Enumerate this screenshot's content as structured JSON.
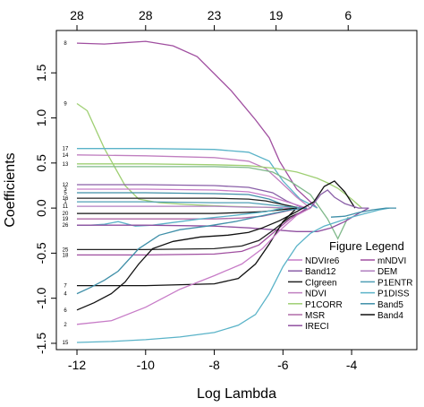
{
  "chart_data": {
    "type": "line",
    "title": "",
    "xlabel": "Log Lambda",
    "ylabel": "Coefficients",
    "xlim": [
      -12.6,
      -2.1
    ],
    "ylim": [
      -1.57,
      1.97
    ],
    "x_ticks": [
      "-12",
      "-10",
      "-8",
      "-6",
      "-4"
    ],
    "y_ticks": [
      "-1.5",
      "-1.0",
      "-0.5",
      "0.0",
      "0.5",
      "1.0",
      "1.5"
    ],
    "top_axis": {
      "positions": [
        -12,
        -10,
        -8,
        -6.2,
        -4.1
      ],
      "labels": [
        "28",
        "28",
        "23",
        "19",
        "6"
      ]
    },
    "legend_title": "Figure Legend",
    "legend": [
      {
        "name": "NDVIre6",
        "color": "#c77cc7"
      },
      {
        "name": "mNDVI",
        "color": "#a04fa0"
      },
      {
        "name": "Band12",
        "color": "#8a5fa8"
      },
      {
        "name": "DEM",
        "color": "#b07fc0"
      },
      {
        "name": "CIgreen",
        "color": "#222222"
      },
      {
        "name": "P1ENTR",
        "color": "#4f9fb5"
      },
      {
        "name": "NDVI",
        "color": "#c07fc0"
      },
      {
        "name": "P1DISS",
        "color": "#5ab3c8"
      },
      {
        "name": "P1CORR",
        "color": "#9fcf73"
      },
      {
        "name": "Band5",
        "color": "#3f8fa8"
      },
      {
        "name": "MSR",
        "color": "#b06aa8"
      },
      {
        "name": "Band4",
        "color": "#111111"
      },
      {
        "name": "IRECI",
        "color": "#9050a0"
      }
    ],
    "left_labels": [
      {
        "text": "8",
        "y": 1.83
      },
      {
        "text": "9",
        "y": 1.16
      },
      {
        "text": "17",
        "y": 0.66
      },
      {
        "text": "14",
        "y": 0.59
      },
      {
        "text": "13",
        "y": 0.49
      },
      {
        "text": "12",
        "y": 0.26
      },
      {
        "text": "3",
        "y": 0.21
      },
      {
        "text": "5",
        "y": 0.17
      },
      {
        "text": "16",
        "y": 0.11
      },
      {
        "text": "1",
        "y": 0.07
      },
      {
        "text": "11",
        "y": 0.02
      },
      {
        "text": "20",
        "y": -0.06
      },
      {
        "text": "19",
        "y": -0.12
      },
      {
        "text": "26",
        "y": -0.19
      },
      {
        "text": "25",
        "y": -0.46
      },
      {
        "text": "18",
        "y": -0.52
      },
      {
        "text": "7",
        "y": -0.86
      },
      {
        "text": "4",
        "y": -0.95
      },
      {
        "text": "6",
        "y": -1.13
      },
      {
        "text": "2",
        "y": -1.29
      },
      {
        "text": "15",
        "y": -1.49
      }
    ],
    "series": [
      {
        "color": "#a04fa0",
        "x": [
          -12,
          -11.2,
          -10,
          -9.2,
          -8.5,
          -7.5,
          -6.8,
          -6.4,
          -6.1,
          -5.6,
          -5.0
        ],
        "y": [
          1.83,
          1.82,
          1.85,
          1.8,
          1.68,
          1.3,
          0.98,
          0.78,
          0.52,
          0.21,
          0.0
        ]
      },
      {
        "color": "#9fcf73",
        "x": [
          -12,
          -11.7,
          -11.2,
          -10.6,
          -10.2,
          -9.6,
          -8.8,
          -7.6,
          -6.6,
          -6.1,
          -5.7
        ],
        "y": [
          1.16,
          1.08,
          0.66,
          0.25,
          0.1,
          0.06,
          0.04,
          0.02,
          0.01,
          0.0,
          0.0
        ]
      },
      {
        "color": "#5ab3c8",
        "x": [
          -12,
          -10,
          -8,
          -7,
          -6.4,
          -6.0,
          -5.5,
          -5.0
        ],
        "y": [
          0.66,
          0.66,
          0.65,
          0.62,
          0.52,
          0.3,
          0.1,
          0.0
        ]
      },
      {
        "color": "#c07fc0",
        "x": [
          -12,
          -10,
          -8,
          -7,
          -6.5,
          -6.1,
          -5.6,
          -5.2
        ],
        "y": [
          0.59,
          0.58,
          0.56,
          0.52,
          0.44,
          0.3,
          0.12,
          0.0
        ]
      },
      {
        "color": "#9fcf73",
        "x": [
          -12,
          -10,
          -8,
          -7,
          -6.2,
          -5.6,
          -5.0,
          -4.7,
          -4.4,
          -4.0,
          -3.7
        ],
        "y": [
          0.49,
          0.49,
          0.48,
          0.47,
          0.44,
          0.4,
          0.33,
          0.28,
          0.22,
          0.1,
          0.0
        ]
      },
      {
        "color": "#7fb88a",
        "x": [
          -12,
          -10,
          -8,
          -7,
          -6.3,
          -5.8,
          -5.2,
          -4.7,
          -4.4,
          -4.1
        ],
        "y": [
          0.46,
          0.46,
          0.46,
          0.45,
          0.4,
          0.3,
          0.15,
          -0.12,
          -0.34,
          -0.1
        ]
      },
      {
        "color": "#8a5fa8",
        "x": [
          -12,
          -10,
          -8,
          -7,
          -6.3,
          -5.9,
          -5.4
        ],
        "y": [
          0.26,
          0.26,
          0.25,
          0.23,
          0.17,
          0.08,
          0.0
        ]
      },
      {
        "color": "#c77cc7",
        "x": [
          -12,
          -10,
          -8,
          -7,
          -6.4,
          -5.8,
          -5.3
        ],
        "y": [
          0.21,
          0.21,
          0.2,
          0.18,
          0.13,
          0.06,
          0.0
        ]
      },
      {
        "color": "#3f8fa8",
        "x": [
          -12,
          -10,
          -8,
          -7,
          -6.4,
          -6.0,
          -5.5
        ],
        "y": [
          0.17,
          0.17,
          0.16,
          0.15,
          0.1,
          0.04,
          0.0
        ]
      },
      {
        "color": "#222222",
        "x": [
          -12,
          -10,
          -8,
          -7,
          -6.5,
          -6.0,
          -5.5
        ],
        "y": [
          0.11,
          0.11,
          0.11,
          0.1,
          0.08,
          0.04,
          0.0
        ]
      },
      {
        "color": "#4f9fb5",
        "x": [
          -12,
          -10,
          -8,
          -7,
          -6.5,
          -6.0,
          -5.4
        ],
        "y": [
          0.07,
          0.07,
          0.06,
          0.06,
          0.04,
          0.02,
          0.0
        ]
      },
      {
        "color": "#b07fc0",
        "x": [
          -12,
          -10,
          -8,
          -7,
          -6.5,
          -5.8
        ],
        "y": [
          0.02,
          0.02,
          0.02,
          0.01,
          0.01,
          0.0
        ]
      },
      {
        "color": "#111111",
        "x": [
          -12,
          -10,
          -8,
          -7.2,
          -6.6,
          -6.1,
          -5.6
        ],
        "y": [
          -0.06,
          -0.06,
          -0.06,
          -0.05,
          -0.04,
          -0.02,
          0.0
        ]
      },
      {
        "color": "#b06aa8",
        "x": [
          -12,
          -10,
          -8,
          -7.2,
          -6.6,
          -6.1,
          -5.5
        ],
        "y": [
          -0.12,
          -0.12,
          -0.12,
          -0.11,
          -0.09,
          -0.05,
          0.0
        ]
      },
      {
        "color": "#5ab3c8",
        "x": [
          -12,
          -11.6,
          -11.2,
          -10.8,
          -10.3,
          -9.8,
          -9.2,
          -8.4,
          -7.4,
          -6.5,
          -6.0
        ],
        "y": [
          -0.19,
          -0.19,
          -0.18,
          -0.15,
          -0.2,
          -0.19,
          -0.16,
          -0.12,
          -0.08,
          -0.04,
          0.0
        ]
      },
      {
        "color": "#9050a0",
        "x": [
          -12,
          -10,
          -8,
          -7,
          -6.3,
          -5.6,
          -5.0,
          -4.6,
          -4.2,
          -3.8,
          -3.5
        ],
        "y": [
          -0.19,
          -0.19,
          -0.2,
          -0.22,
          -0.24,
          -0.26,
          -0.26,
          -0.22,
          -0.15,
          -0.06,
          0.0
        ]
      },
      {
        "color": "#222222",
        "x": [
          -12,
          -10,
          -8,
          -7.2,
          -6.7,
          -6.3,
          -5.8,
          -5.2
        ],
        "y": [
          -0.46,
          -0.46,
          -0.45,
          -0.42,
          -0.36,
          -0.25,
          -0.1,
          0.0
        ]
      },
      {
        "color": "#a04fa0",
        "x": [
          -12,
          -10,
          -8,
          -7.2,
          -6.7,
          -6.3,
          -5.8,
          -5.3
        ],
        "y": [
          -0.52,
          -0.52,
          -0.51,
          -0.48,
          -0.41,
          -0.28,
          -0.12,
          0.0
        ]
      },
      {
        "color": "#111111",
        "x": [
          -12,
          -10,
          -8,
          -7.3,
          -6.8,
          -6.4,
          -6.0,
          -5.6
        ],
        "y": [
          -0.86,
          -0.86,
          -0.84,
          -0.78,
          -0.62,
          -0.4,
          -0.15,
          0.0
        ]
      },
      {
        "color": "#3f8fa8",
        "x": [
          -12,
          -11.6,
          -11.2,
          -10.8,
          -10.2,
          -9.6,
          -9.0,
          -8.2,
          -7.4,
          -6.8,
          -6.3,
          -5.8,
          -5.3
        ],
        "y": [
          -0.95,
          -0.88,
          -0.8,
          -0.7,
          -0.45,
          -0.3,
          -0.24,
          -0.2,
          -0.15,
          -0.1,
          -0.06,
          -0.02,
          0.0
        ]
      },
      {
        "color": "#111111",
        "x": [
          -12,
          -11.5,
          -11.0,
          -10.6,
          -10.2,
          -9.8,
          -9.2,
          -8.4,
          -7.6,
          -7.0,
          -6.6,
          -6.1,
          -5.6,
          -5.1,
          -4.8,
          -4.5,
          -4.2,
          -3.9
        ],
        "y": [
          -1.13,
          -1.05,
          -0.95,
          -0.82,
          -0.62,
          -0.45,
          -0.37,
          -0.32,
          -0.3,
          -0.27,
          -0.22,
          -0.14,
          -0.04,
          0.07,
          0.24,
          0.3,
          0.18,
          0.0
        ]
      },
      {
        "color": "#c77cc7",
        "x": [
          -12,
          -11,
          -10,
          -9,
          -8,
          -7.2,
          -6.6,
          -6.1,
          -5.6,
          -5.2
        ],
        "y": [
          -1.29,
          -1.25,
          -1.1,
          -0.9,
          -0.75,
          -0.62,
          -0.45,
          -0.25,
          -0.08,
          0.0
        ]
      },
      {
        "color": "#5ab3c8",
        "x": [
          -12,
          -11,
          -10,
          -9,
          -8,
          -7.3,
          -6.8,
          -6.4,
          -6.0,
          -5.6,
          -5.2,
          -4.8,
          -4.4,
          -4.0,
          -3.6,
          -3.2,
          -2.9
        ],
        "y": [
          -1.49,
          -1.48,
          -1.46,
          -1.43,
          -1.38,
          -1.3,
          -1.18,
          -0.95,
          -0.65,
          -0.42,
          -0.28,
          -0.2,
          -0.15,
          -0.1,
          -0.06,
          -0.02,
          0.0
        ]
      },
      {
        "color": "#8a5fa8",
        "x": [
          -5.2,
          -4.9,
          -4.7,
          -4.5,
          -4.2,
          -3.8,
          -3.5
        ],
        "y": [
          0.0,
          0.15,
          0.2,
          0.12,
          0.05,
          0.0,
          0.0
        ]
      },
      {
        "color": "#3f8fa8",
        "x": [
          -4.6,
          -4.2,
          -3.8,
          -3.4,
          -3.0,
          -2.7
        ],
        "y": [
          -0.1,
          -0.09,
          -0.05,
          -0.02,
          0.0,
          0.0
        ]
      }
    ]
  }
}
